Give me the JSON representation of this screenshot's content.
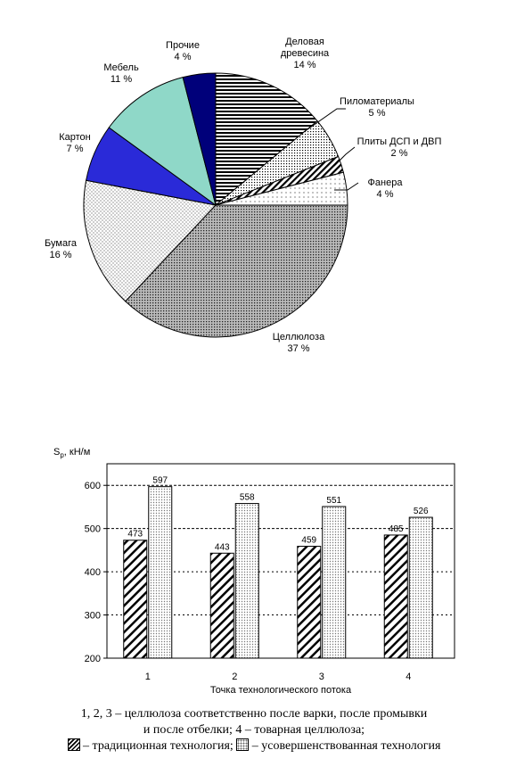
{
  "chart_data": [
    {
      "type": "pie",
      "slices": [
        {
          "name": "Деловая древесина",
          "value": 14,
          "label_lines": [
            "Деловая",
            "древесина",
            "14 %"
          ],
          "fill": "hstripes"
        },
        {
          "name": "Пиломатериалы",
          "value": 5,
          "label_lines": [
            "Пиломатериалы",
            "5 %"
          ],
          "fill": "dots-dark"
        },
        {
          "name": "Плиты ДСП и ДВП",
          "value": 2,
          "label_lines": [
            "Плиты ДСП и ДВП",
            "2 %"
          ],
          "fill": "diag"
        },
        {
          "name": "Фанера",
          "value": 4,
          "label_lines": [
            "Фанера",
            "4 %"
          ],
          "fill": "dots-light"
        },
        {
          "name": "Целлюлоза",
          "value": 37,
          "label_lines": [
            "Целлюлоза",
            "37 %"
          ],
          "fill": "dots-gray"
        },
        {
          "name": "Бумага",
          "value": 16,
          "label_lines": [
            "Бумага",
            "16 %"
          ],
          "fill": "dots-fine"
        },
        {
          "name": "Картон",
          "value": 7,
          "label_lines": [
            "Картон",
            "7 %"
          ],
          "fill": "blue"
        },
        {
          "name": "Мебель",
          "value": 11,
          "label_lines": [
            "Мебель",
            "11 %"
          ],
          "fill": "cyan"
        },
        {
          "name": "Прочие",
          "value": 4,
          "label_lines": [
            "Прочие",
            "4 %"
          ],
          "fill": "navy"
        }
      ],
      "colors": {
        "navy": "#00007a",
        "blue": "#2a2ad8",
        "cyan": "#8fd8c8"
      }
    },
    {
      "type": "bar",
      "y_label_main": "S",
      "y_label_sub": "p",
      "y_label_rest": ", кН/м",
      "xlabel": "Точка технологического потока",
      "categories": [
        "1",
        "2",
        "3",
        "4"
      ],
      "series": [
        {
          "values": [
            473,
            443,
            459,
            485
          ],
          "fill": "hatch"
        },
        {
          "values": [
            597,
            558,
            551,
            526
          ],
          "fill": "dots"
        }
      ],
      "ylim": [
        200,
        650
      ],
      "yticks": [
        "200",
        "300",
        "400",
        "500",
        "600"
      ],
      "gridlines": [
        500,
        600
      ]
    }
  ],
  "caption": {
    "line1": "1, 2, 3 – целлюлоза соответственно после варки, после промывки",
    "line2": "и после отбелки; 4 – товарная целлюлоза;",
    "legend1": "– традиционная технология;",
    "legend2": "– усовершенствованная технология"
  }
}
